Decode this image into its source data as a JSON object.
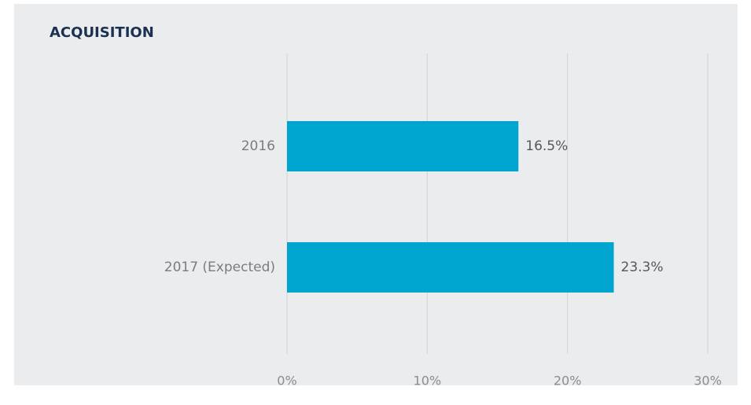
{
  "chart_data": {
    "type": "bar",
    "orientation": "horizontal",
    "title": "ACQUISITION",
    "categories": [
      "2016",
      "2017 (Expected)"
    ],
    "values": [
      16.5,
      23.3
    ],
    "value_labels": [
      "16.5%",
      "23.3%"
    ],
    "color": "#00a5cf",
    "xlim": [
      0,
      30
    ],
    "xticks": [
      {
        "value": 0,
        "label": "0%"
      },
      {
        "value": 10,
        "label": "10%"
      },
      {
        "value": 20,
        "label": "20%"
      },
      {
        "value": 30,
        "label": "30%"
      }
    ],
    "grid": true
  }
}
